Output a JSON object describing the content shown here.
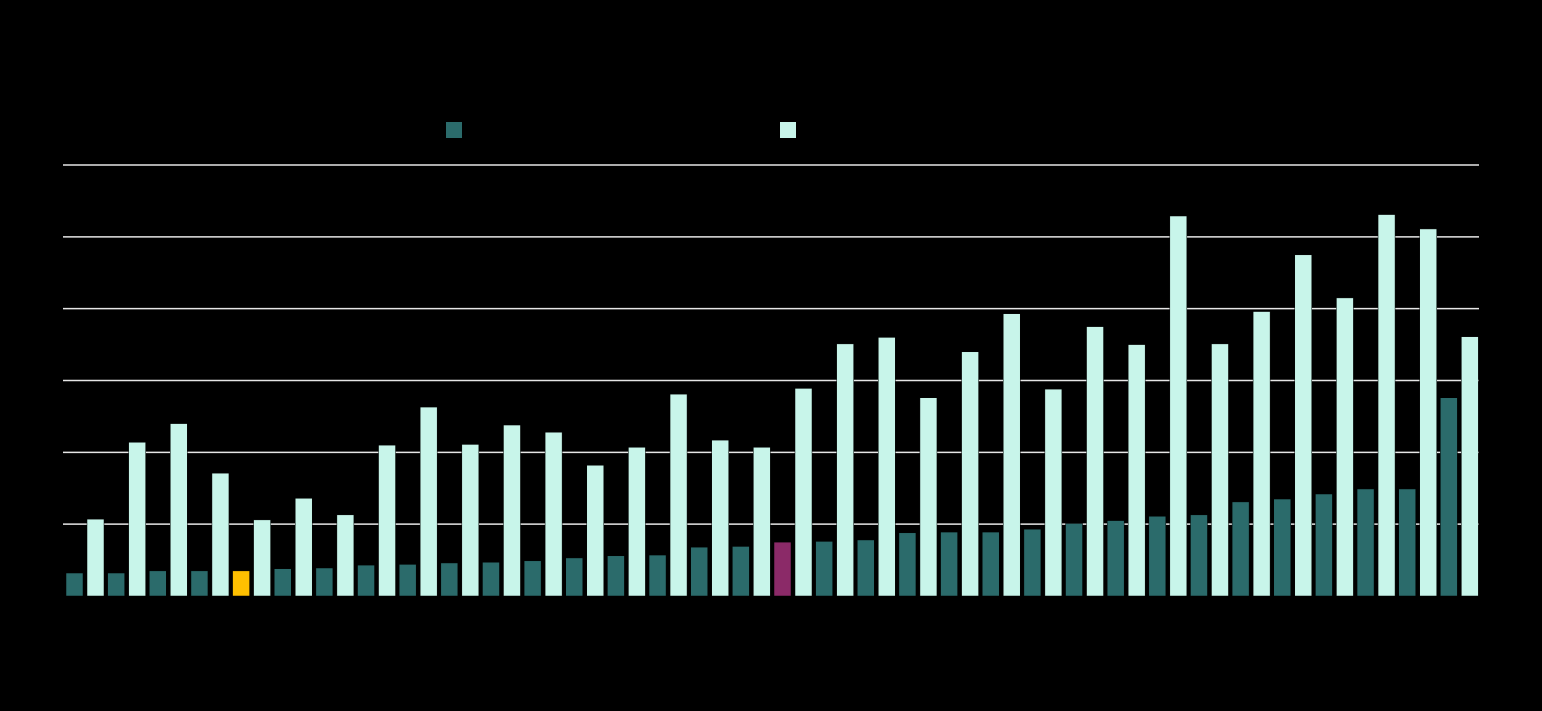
{
  "chart_data": {
    "type": "bar",
    "categories": [
      null,
      null,
      null,
      null,
      null,
      null,
      null,
      null,
      null,
      null,
      null,
      null,
      null,
      null,
      null,
      null,
      null,
      null,
      null,
      null,
      null,
      null,
      null,
      null,
      null,
      null,
      null,
      null,
      null,
      null,
      null,
      null,
      null,
      null
    ],
    "series": [
      {
        "color": "#2b6b6b",
        "colors": [
          "#2b6b6b",
          "#2b6b6b",
          "#2b6b6b",
          "#2b6b6b",
          "#ffc000",
          "#2b6b6b",
          "#2b6b6b",
          "#2b6b6b",
          "#2b6b6b",
          "#2b6b6b",
          "#2b6b6b",
          "#2b6b6b",
          "#2b6b6b",
          "#2b6b6b",
          "#2b6b6b",
          "#2b6b6b",
          "#2b6b6b",
          "#8b2a68",
          "#2b6b6b",
          "#2b6b6b",
          "#2b6b6b",
          "#2b6b6b",
          "#2b6b6b",
          "#2b6b6b",
          "#2b6b6b",
          "#2b6b6b",
          "#2b6b6b",
          "#2b6b6b",
          "#2b6b6b",
          "#2b6b6b",
          "#2b6b6b",
          "#2b6b6b",
          "#2b6b6b",
          "#2b6b6b"
        ],
        "values": [
          3.2,
          3.2,
          3.5,
          3.5,
          3.5,
          3.8,
          3.9,
          4.3,
          4.4,
          4.6,
          4.7,
          4.9,
          5.3,
          5.6,
          5.7,
          6.8,
          6.9,
          7.5,
          7.6,
          7.8,
          8.8,
          8.9,
          8.9,
          9.3,
          10.1,
          10.5,
          11.1,
          11.3,
          13.1,
          13.5,
          14.2,
          14.9,
          14.9,
          27.6
        ]
      },
      {
        "color": "#c8f5ea",
        "values": [
          10.7,
          21.4,
          24.0,
          17.1,
          10.6,
          13.6,
          11.3,
          21.0,
          26.3,
          21.1,
          23.8,
          22.8,
          18.2,
          20.7,
          28.1,
          21.7,
          20.7,
          28.9,
          35.1,
          36.0,
          27.6,
          34.0,
          39.3,
          28.8,
          37.5,
          35.0,
          52.9,
          35.1,
          39.6,
          47.5,
          41.5,
          53.1,
          51.1,
          36.1
        ]
      }
    ],
    "ylim": [
      0,
      60
    ],
    "yticks": [
      10,
      20,
      30,
      40,
      50,
      60
    ],
    "grid": true
  }
}
